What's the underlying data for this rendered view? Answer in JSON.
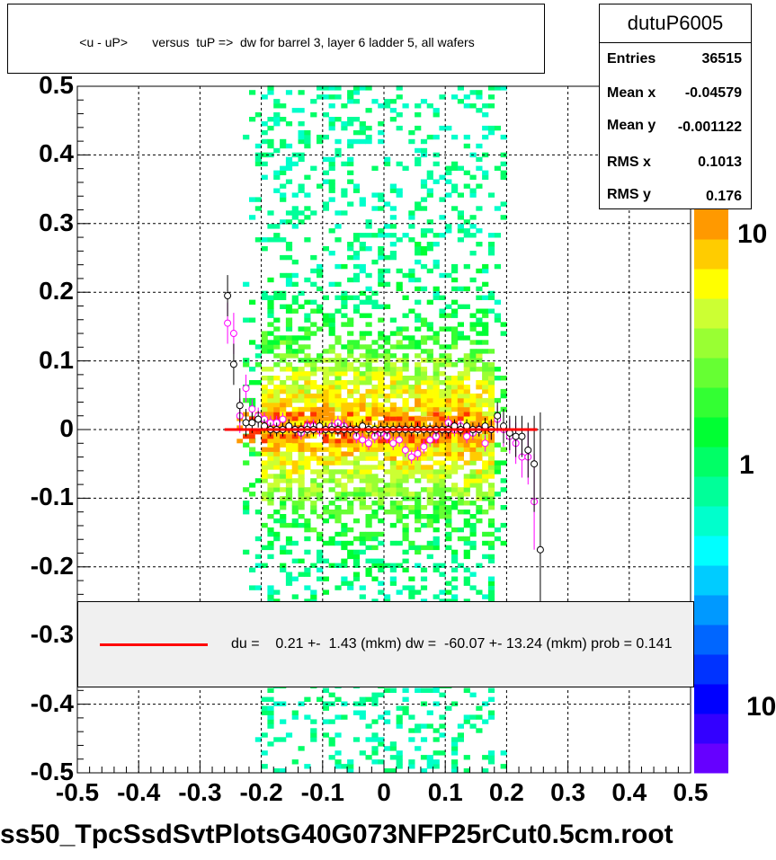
{
  "chart_data": {
    "type": "heatmap",
    "title": "<u - uP>       versus  tuP =>  dw for barrel 3, layer 6 ladder 5, all wafers",
    "xlabel": "",
    "ylabel": "",
    "xlim": [
      -0.5,
      0.5
    ],
    "ylim": [
      -0.5,
      0.5
    ],
    "x_ticks": [
      "-0.5",
      "-0.4",
      "-0.3",
      "-0.2",
      "-0.1",
      "0",
      "0.1",
      "0.2",
      "0.3",
      "0.4",
      "0.5"
    ],
    "y_ticks": [
      "0.5",
      "0.4",
      "0.3",
      "0.2",
      "0.1",
      "0",
      "-0.1",
      "-0.2",
      "-0.3",
      "-0.4",
      "-0.5"
    ],
    "grid": true,
    "z_scale": "log",
    "z_labels": [
      "10",
      "1",
      "10"
    ],
    "colormap": [
      "#6600ff",
      "#3300ff",
      "#0000ff",
      "#0033ff",
      "#0066ff",
      "#0099ff",
      "#00ccff",
      "#00ffff",
      "#00ffcc",
      "#00ff99",
      "#00ff66",
      "#00ff33",
      "#33ff33",
      "#66ff33",
      "#99ff33",
      "#ccff33",
      "#ffff00",
      "#ffcc00",
      "#ff9900"
    ],
    "density": {
      "x_range": [
        -0.23,
        0.2
      ],
      "core_x_range": [
        -0.2,
        0.18
      ],
      "peak_y": 0.0
    },
    "profile_black": {
      "x": [
        -0.255,
        -0.245,
        -0.235,
        -0.225,
        -0.215,
        -0.205,
        -0.195,
        -0.185,
        -0.175,
        -0.165,
        -0.155,
        -0.145,
        -0.135,
        -0.125,
        -0.115,
        -0.105,
        -0.095,
        -0.085,
        -0.075,
        -0.065,
        -0.055,
        -0.045,
        -0.035,
        -0.025,
        -0.015,
        -0.005,
        0.005,
        0.015,
        0.025,
        0.035,
        0.045,
        0.055,
        0.065,
        0.075,
        0.085,
        0.095,
        0.105,
        0.115,
        0.125,
        0.135,
        0.145,
        0.155,
        0.165,
        0.175,
        0.185,
        0.195,
        0.205,
        0.215,
        0.225,
        0.235,
        0.245,
        0.255
      ],
      "y": [
        0.195,
        0.095,
        0.035,
        0.01,
        0.01,
        0.015,
        0.005,
        0.0,
        0.0,
        0.0,
        0.005,
        0.0,
        0.0,
        0.0,
        0.0,
        0.005,
        0.0,
        0.0,
        0.0,
        0.0,
        0.0,
        0.0,
        0.005,
        0.0,
        0.0,
        0.0,
        0.0,
        0.0,
        0.0,
        0.0,
        0.0,
        0.0,
        0.0,
        0.0,
        0.0,
        0.0,
        0.0,
        0.005,
        0.0,
        0.005,
        0.0,
        0.0,
        0.005,
        0.0,
        0.02,
        0.005,
        -0.005,
        -0.01,
        -0.01,
        -0.03,
        -0.05,
        -0.175
      ],
      "err": [
        0.03,
        0.03,
        0.025,
        0.02,
        0.015,
        0.012,
        0.01,
        0.01,
        0.01,
        0.01,
        0.01,
        0.01,
        0.01,
        0.01,
        0.01,
        0.01,
        0.01,
        0.01,
        0.01,
        0.01,
        0.01,
        0.01,
        0.01,
        0.01,
        0.01,
        0.01,
        0.01,
        0.01,
        0.01,
        0.01,
        0.01,
        0.01,
        0.01,
        0.01,
        0.01,
        0.01,
        0.01,
        0.01,
        0.01,
        0.01,
        0.01,
        0.01,
        0.012,
        0.015,
        0.02,
        0.025,
        0.025,
        0.03,
        0.03,
        0.04,
        0.07,
        0.2
      ]
    },
    "profile_magenta": {
      "x": [
        -0.255,
        -0.245,
        -0.235,
        -0.225,
        -0.215,
        -0.205,
        -0.195,
        -0.185,
        -0.175,
        -0.165,
        -0.155,
        -0.145,
        -0.135,
        -0.125,
        -0.115,
        -0.105,
        -0.095,
        -0.085,
        -0.075,
        -0.065,
        -0.055,
        -0.045,
        -0.035,
        -0.025,
        -0.015,
        -0.005,
        0.005,
        0.015,
        0.025,
        0.035,
        0.045,
        0.055,
        0.065,
        0.075,
        0.085,
        0.095,
        0.105,
        0.115,
        0.125,
        0.135,
        0.145,
        0.155,
        0.165,
        0.175,
        0.185,
        0.195,
        0.205,
        0.215,
        0.225,
        0.235,
        0.245
      ],
      "y": [
        0.155,
        0.14,
        0.02,
        0.06,
        0.03,
        0.02,
        0.015,
        0.01,
        0.01,
        0.015,
        0.005,
        0.0,
        -0.005,
        0.005,
        0.005,
        0.0,
        0.0,
        0.005,
        0.01,
        0.005,
        0.0,
        -0.01,
        -0.015,
        -0.02,
        -0.01,
        -0.005,
        -0.01,
        -0.02,
        -0.015,
        -0.03,
        -0.04,
        -0.035,
        -0.025,
        -0.015,
        -0.01,
        0.0,
        0.01,
        0.0,
        0.005,
        -0.01,
        -0.005,
        0.0,
        -0.02,
        0.0,
        0.015,
        0.0,
        -0.01,
        -0.02,
        -0.04,
        -0.04,
        -0.105
      ],
      "err": [
        0.03,
        0.03,
        0.025,
        0.02,
        0.015,
        0.012,
        0.01,
        0.01,
        0.01,
        0.01,
        0.01,
        0.01,
        0.01,
        0.01,
        0.01,
        0.01,
        0.01,
        0.01,
        0.01,
        0.01,
        0.01,
        0.01,
        0.01,
        0.01,
        0.01,
        0.01,
        0.01,
        0.01,
        0.01,
        0.01,
        0.01,
        0.01,
        0.01,
        0.01,
        0.01,
        0.01,
        0.01,
        0.01,
        0.01,
        0.01,
        0.01,
        0.01,
        0.012,
        0.015,
        0.02,
        0.025,
        0.025,
        0.03,
        0.03,
        0.04,
        0.07
      ]
    },
    "fit_line": {
      "x": [
        -0.26,
        0.25
      ],
      "y": [
        0.0,
        0.0
      ],
      "color": "#ff0000"
    }
  },
  "stats": {
    "name": "dutuP6005",
    "rows": [
      {
        "label": "Entries",
        "value": "36515"
      },
      {
        "label": "Mean x",
        "value": "-0.04579"
      },
      {
        "label": "Mean y",
        "value": "-0.001122"
      },
      {
        "label": "RMS x",
        "value": "0.1013"
      },
      {
        "label": "RMS y",
        "value": "0.176"
      }
    ]
  },
  "legend": {
    "text": "du =    0.21 +-  1.43 (mkm) dw =  -60.07 +- 13.24 (mkm) prob = 0.141"
  },
  "footer": "ss50_TpcSsdSvtPlotsG40G073NFP25rCut0.5cm.root"
}
